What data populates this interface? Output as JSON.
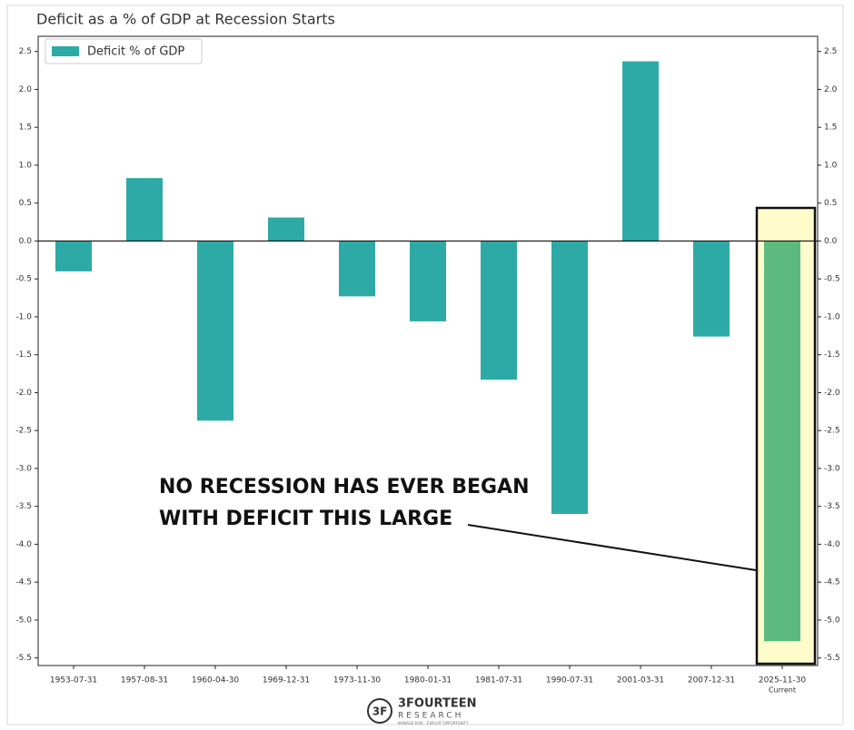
{
  "chart_data": {
    "type": "bar",
    "title": "Deficit as a % of GDP at Recession Starts",
    "categories": [
      "1953-07-31",
      "1957-08-31",
      "1960-04-30",
      "1969-12-31",
      "1973-11-30",
      "1980-01-31",
      "1981-07-31",
      "1990-07-31",
      "2001-03-31",
      "2007-12-31",
      "2025-11-30"
    ],
    "category_note": "Current",
    "series": [
      {
        "name": "Deficit % of GDP",
        "color": "#2eaaa6",
        "values": [
          -0.4,
          0.83,
          -2.37,
          0.31,
          -0.73,
          -1.06,
          -1.83,
          -3.6,
          2.37,
          -1.26,
          -5.28
        ],
        "bar_colors": [
          "#2eaaa6",
          "#2eaaa6",
          "#2eaaa6",
          "#2eaaa6",
          "#2eaaa6",
          "#2eaaa6",
          "#2eaaa6",
          "#2eaaa6",
          "#2eaaa6",
          "#2eaaa6",
          "#5dba7f"
        ]
      }
    ],
    "ylim": [
      -5.6,
      2.7
    ],
    "yticks": [
      {
        "value": 2.5,
        "label": "2.5"
      },
      {
        "value": 2,
        "label": "2.0"
      },
      {
        "value": 1.5,
        "label": "1.5"
      },
      {
        "value": 1,
        "label": "1.0"
      },
      {
        "value": 0.5,
        "label": "0.5"
      },
      {
        "value": 0,
        "label": "0.0"
      },
      {
        "value": -0.5,
        "label": "-0.5"
      },
      {
        "value": -1,
        "label": "-1.0"
      },
      {
        "value": -1.5,
        "label": "-1.5"
      },
      {
        "value": -2,
        "label": "-2.0"
      },
      {
        "value": -2.5,
        "label": "-2.5"
      },
      {
        "value": -3,
        "label": "-3.0"
      },
      {
        "value": -3.5,
        "label": "-3.5"
      },
      {
        "value": -4,
        "label": "-4.0"
      },
      {
        "value": -4.5,
        "label": "-4.5"
      },
      {
        "value": -5,
        "label": "-5.0"
      },
      {
        "value": -5.5,
        "label": "-5.5"
      }
    ],
    "legend": "upper left",
    "annotation": [
      "NO RECESSION HAS EVER BEGAN",
      "WITH DEFICIT THIS LARGE"
    ]
  },
  "logo": {
    "name": "3FOURTEEN",
    "sub": "RESEARCH",
    "tagline": "MANAGE RISK · EXPLOIT OPPORTUNITY"
  }
}
